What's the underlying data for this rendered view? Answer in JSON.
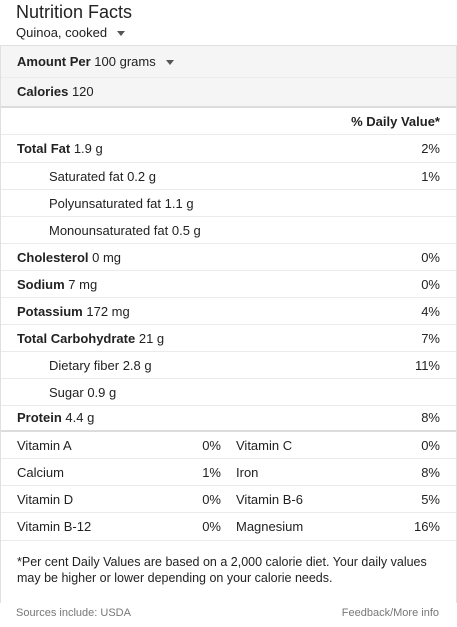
{
  "header": {
    "title": "Nutrition Facts",
    "food": "Quinoa, cooked"
  },
  "amount": {
    "label": "Amount Per",
    "value": "100 grams"
  },
  "calories": {
    "label": "Calories",
    "value": "120"
  },
  "dv_header": "% Daily Value*",
  "nutrients": [
    {
      "name": "Total Fat",
      "amount": "1.9 g",
      "pct": "2%"
    },
    {
      "name": "Saturated fat",
      "amount": "0.2 g",
      "pct": "1%"
    },
    {
      "name": "Polyunsaturated fat",
      "amount": "1.1 g",
      "pct": ""
    },
    {
      "name": "Monounsaturated fat",
      "amount": "0.5 g",
      "pct": ""
    },
    {
      "name": "Cholesterol",
      "amount": "0 mg",
      "pct": "0%"
    },
    {
      "name": "Sodium",
      "amount": "7 mg",
      "pct": "0%"
    },
    {
      "name": "Potassium",
      "amount": "172 mg",
      "pct": "4%"
    },
    {
      "name": "Total Carbohydrate",
      "amount": "21 g",
      "pct": "7%"
    },
    {
      "name": "Dietary fiber",
      "amount": "2.8 g",
      "pct": "11%"
    },
    {
      "name": "Sugar",
      "amount": "0.9 g",
      "pct": ""
    },
    {
      "name": "Protein",
      "amount": "4.4 g",
      "pct": "8%"
    }
  ],
  "vitamins": [
    {
      "left": "Vitamin A",
      "left_pct": "0%",
      "right": "Vitamin C",
      "right_pct": "0%"
    },
    {
      "left": "Calcium",
      "left_pct": "1%",
      "right": "Iron",
      "right_pct": "8%"
    },
    {
      "left": "Vitamin D",
      "left_pct": "0%",
      "right": "Vitamin B-6",
      "right_pct": "5%"
    },
    {
      "left": "Vitamin B-12",
      "left_pct": "0%",
      "right": "Magnesium",
      "right_pct": "16%"
    }
  ],
  "footnote": "*Per cent Daily Values are based on a 2,000 calorie diet. Your daily values may be higher or lower depending on your calorie needs.",
  "sources": "Sources include: USDA",
  "feedback": "Feedback/More info"
}
